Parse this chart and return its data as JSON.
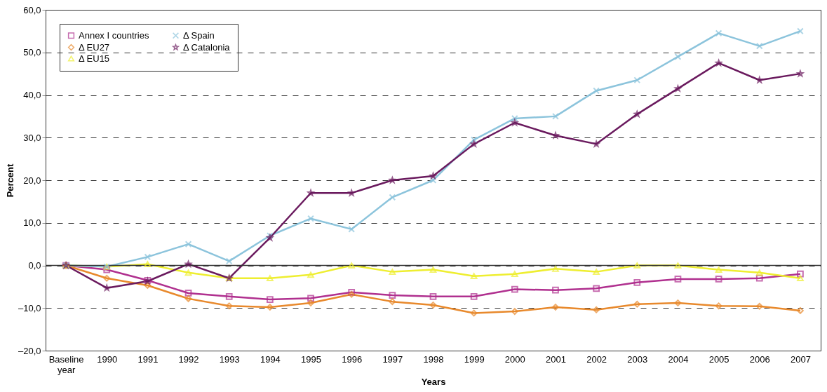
{
  "chart_data": {
    "type": "line",
    "xlabel": "Years",
    "ylabel": "Percent",
    "categories": [
      "Baseline year",
      "1990",
      "1991",
      "1992",
      "1993",
      "1994",
      "1995",
      "1996",
      "1997",
      "1998",
      "1999",
      "2000",
      "2001",
      "2002",
      "2003",
      "2004",
      "2005",
      "2006",
      "2007"
    ],
    "series": [
      {
        "name": "Annex I countries",
        "color": "#b0308f",
        "marker": "square",
        "values": [
          0,
          -1,
          -3.5,
          -6.5,
          -7.3,
          -8,
          -7.7,
          -6.3,
          -7,
          -7.3,
          -7.3,
          -5.6,
          -5.8,
          -5.4,
          -4,
          -3.2,
          -3.2,
          -3,
          -2
        ]
      },
      {
        "name": "Δ EU27",
        "color": "#e8892c",
        "marker": "diamond",
        "values": [
          0,
          -3,
          -4.7,
          -7.8,
          -9.5,
          -9.8,
          -8.8,
          -6.8,
          -8.5,
          -9.3,
          -11.2,
          -10.8,
          -9.8,
          -10.4,
          -9.1,
          -8.8,
          -9.5,
          -9.6,
          -10.6
        ]
      },
      {
        "name": "Δ EU15",
        "color": "#eeee30",
        "marker": "triangle",
        "values": [
          0,
          -0.3,
          0.3,
          -1.7,
          -3,
          -3,
          -2.2,
          0,
          -1.5,
          -1,
          -2.5,
          -2,
          -0.8,
          -1.5,
          0,
          0,
          -1,
          -1.7,
          -3
        ]
      },
      {
        "name": "Δ Spain",
        "color": "#8cc4dc",
        "marker": "cross",
        "values": [
          0,
          -0.3,
          2,
          5,
          1,
          7,
          11,
          8.5,
          16,
          20,
          29.5,
          34.5,
          35,
          41,
          43.5,
          49,
          54.5,
          51.5,
          55
        ]
      },
      {
        "name": "Δ Catalonia",
        "color": "#6a1a5e",
        "marker": "star",
        "values": [
          0,
          -5.3,
          -3.7,
          0.3,
          -3,
          6.5,
          17,
          17,
          20,
          21,
          28.5,
          33.5,
          30.5,
          28.5,
          35.5,
          41.5,
          47.5,
          43.5,
          45
        ]
      }
    ],
    "ylim": [
      -20,
      60
    ],
    "yticks": [
      {
        "value": -20,
        "label": "–20,0"
      },
      {
        "value": -10,
        "label": "–10,0"
      },
      {
        "value": 0,
        "label": "0,0"
      },
      {
        "value": 10,
        "label": "10,0"
      },
      {
        "value": 20,
        "label": "20,0"
      },
      {
        "value": 30,
        "label": "30,0"
      },
      {
        "value": 40,
        "label": "40,0"
      },
      {
        "value": 50,
        "label": "50,0"
      },
      {
        "value": 60,
        "label": "60,0"
      }
    ],
    "ref_lines": [
      {
        "axis": "y",
        "value": 0,
        "color": "#333333",
        "line_style": "solid"
      }
    ],
    "grid": "y",
    "line_style": "solid",
    "legend": "top left"
  }
}
